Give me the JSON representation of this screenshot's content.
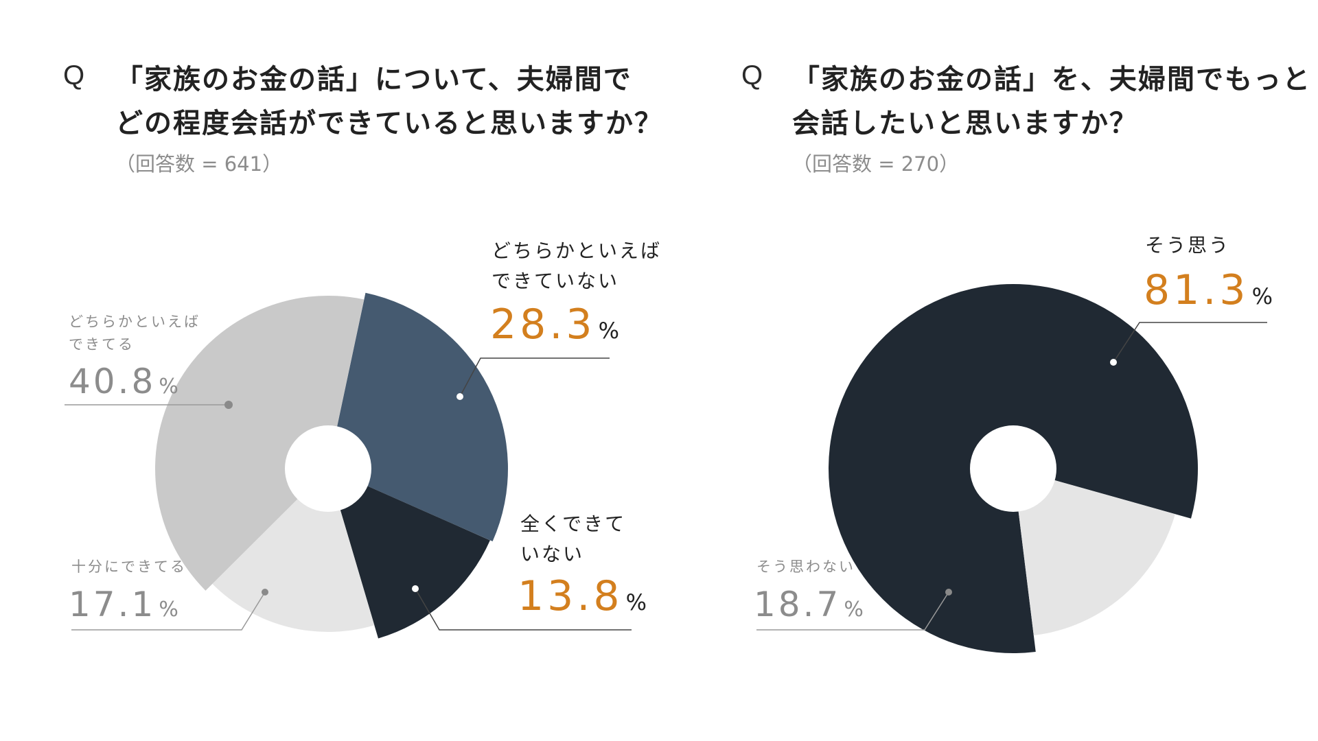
{
  "question_prefix": "Q",
  "chart_data": [
    {
      "type": "pie",
      "title_lines": [
        "「家族のお金の話」について、夫婦間で",
        "どの程度会話ができていると思いますか？"
      ],
      "respondents": "（回答数 = 641）",
      "unit": "%",
      "slices": [
        {
          "label_lines": [
            "どちらかといえば",
            "できていない"
          ],
          "value": 28.3,
          "value_text": "28.3",
          "color": "#455a70",
          "highlight": true
        },
        {
          "label_lines": [
            "全くできて",
            "いない"
          ],
          "value": 13.8,
          "value_text": "13.8",
          "color": "#202933",
          "highlight": true
        },
        {
          "label_lines": [
            "十分にできてる"
          ],
          "value": 17.1,
          "value_text": "17.1",
          "color": "#e5e5e5",
          "highlight": false
        },
        {
          "label_lines": [
            "どちらかといえば",
            "できてる"
          ],
          "value": 40.8,
          "value_text": "40.8",
          "color": "#c9c9c9",
          "highlight": false
        }
      ]
    },
    {
      "type": "pie",
      "title_lines": [
        "「家族のお金の話」を、夫婦間でもっと",
        "会話したいと思いますか？"
      ],
      "respondents": "（回答数 = 270）",
      "unit": "%",
      "slices": [
        {
          "label_lines": [
            "そう思う"
          ],
          "value": 81.3,
          "value_text": "81.3",
          "color": "#202933",
          "highlight": true
        },
        {
          "label_lines": [
            "そう思わない"
          ],
          "value": 18.7,
          "value_text": "18.7",
          "color": "#e5e5e5",
          "highlight": false
        }
      ]
    }
  ]
}
